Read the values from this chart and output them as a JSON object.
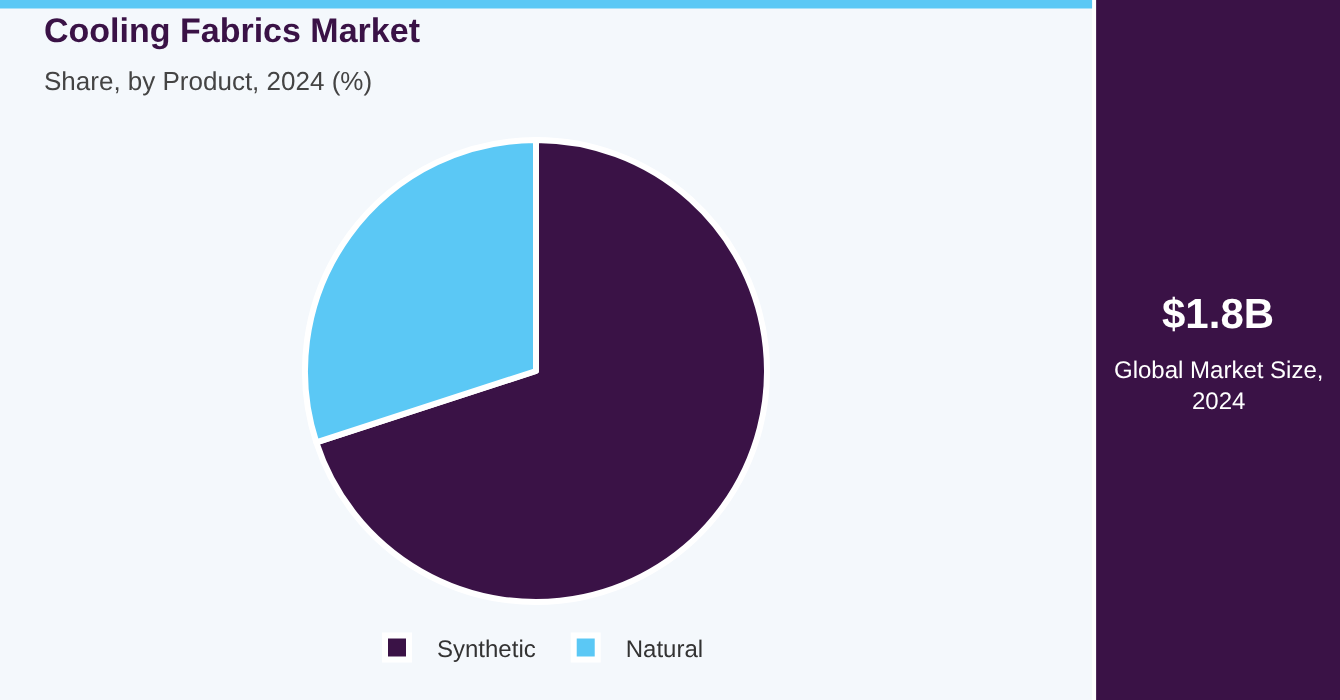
{
  "chart_data": {
    "type": "pie",
    "title": "Cooling Fabrics Market",
    "subtitle": "Share, by Product, 2024 (%)",
    "categories": [
      "Synthetic",
      "Natural"
    ],
    "values": [
      70,
      30
    ],
    "colors": [
      "#3a1246",
      "#5bc8f5"
    ],
    "legend": "bottom",
    "annotations": [
      "$1.8B",
      "Global Market Size, 2024"
    ]
  }
}
